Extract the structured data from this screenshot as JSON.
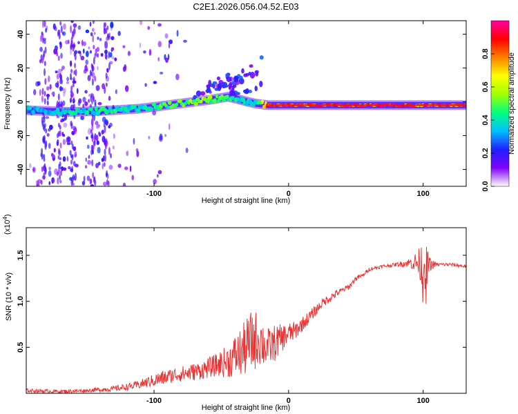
{
  "chart_data": [
    {
      "type": "heatmap",
      "title": "C2E1.2026.056.04.52.E03",
      "xlabel": "Height of straight line (km)",
      "ylabel": "Frequency (Hz)",
      "xlim": [
        -195,
        132
      ],
      "ylim": [
        -50,
        48
      ],
      "x_ticks": [
        {
          "value": -100,
          "label": "-100"
        },
        {
          "value": 0,
          "label": "0"
        },
        {
          "value": 100,
          "label": "100"
        }
      ],
      "y_ticks": [
        {
          "value": 40,
          "label": "40"
        },
        {
          "value": 20,
          "label": "20"
        },
        {
          "value": 0,
          "label": "0"
        },
        {
          "value": -20,
          "label": "-20"
        },
        {
          "value": -40,
          "label": "-40"
        }
      ],
      "ridge": {
        "name": "Dominant frequency track",
        "x": [
          -195,
          -160,
          -130,
          -110,
          -100,
          -80,
          -60,
          -45,
          -35,
          -25,
          -15,
          0,
          20,
          60,
          100,
          132
        ],
        "y": [
          -5,
          -6,
          -5,
          -4,
          -3,
          -1,
          1,
          3,
          1,
          -1,
          -2,
          -2,
          -2,
          -2,
          -2,
          -2
        ],
        "amplitude": [
          0.35,
          0.4,
          0.45,
          0.4,
          0.45,
          0.55,
          0.55,
          0.45,
          0.4,
          0.35,
          0.85,
          0.9,
          0.9,
          0.95,
          0.9,
          0.9
        ]
      },
      "colorbar": {
        "label": "Normalized spectral amplitude",
        "range": [
          0,
          1
        ],
        "ticks": [
          {
            "value": 0.0,
            "label": "0.0"
          },
          {
            "value": 0.2,
            "label": "0.2"
          },
          {
            "value": 0.4,
            "label": "0.4"
          },
          {
            "value": 0.6,
            "label": "0.6"
          },
          {
            "value": 0.8,
            "label": "0.8"
          }
        ],
        "colors": [
          "#ffffff",
          "#8000ff",
          "#2020ff",
          "#00c0ff",
          "#00ff80",
          "#a0ff00",
          "#ffff00",
          "#ff8000",
          "#ff0000",
          "#ff00a0"
        ]
      }
    },
    {
      "type": "line",
      "xlabel": "Height of straight line (km)",
      "ylabel": "SNR (10 * v/v)",
      "y_multiplier": "(x10",
      "y_multiplier_exp": "4",
      "y_multiplier_close": ")",
      "xlim": [
        -195,
        132
      ],
      "ylim": [
        0,
        1.8
      ],
      "x_ticks": [
        {
          "value": -100,
          "label": "-100"
        },
        {
          "value": 0,
          "label": "0"
        },
        {
          "value": 100,
          "label": "100"
        }
      ],
      "y_ticks": [
        {
          "value": 0.5,
          "label": "0.5"
        },
        {
          "value": 1.0,
          "label": "1.0"
        },
        {
          "value": 1.5,
          "label": "1.5"
        }
      ],
      "series": [
        {
          "name": "SNR",
          "color": "#ee3030",
          "x": [
            -195,
            -170,
            -150,
            -130,
            -115,
            -105,
            -95,
            -85,
            -75,
            -65,
            -55,
            -45,
            -35,
            -28,
            -22,
            -18,
            -14,
            -10,
            -5,
            0,
            5,
            10,
            15,
            20,
            25,
            30,
            35,
            40,
            45,
            50,
            55,
            60,
            70,
            80,
            90,
            95,
            98,
            100,
            102,
            105,
            110,
            120,
            132
          ],
          "y": [
            0.03,
            0.02,
            0.03,
            0.05,
            0.08,
            0.12,
            0.16,
            0.2,
            0.22,
            0.25,
            0.3,
            0.35,
            0.45,
            0.55,
            0.6,
            0.52,
            0.5,
            0.55,
            0.6,
            0.65,
            0.68,
            0.75,
            0.82,
            0.9,
            0.98,
            1.03,
            1.08,
            1.12,
            1.16,
            1.25,
            1.28,
            1.35,
            1.38,
            1.4,
            1.42,
            1.42,
            1.4,
            1.35,
            1.38,
            1.4,
            1.4,
            1.4,
            1.38
          ],
          "noise": [
            0.02,
            0.02,
            0.02,
            0.03,
            0.04,
            0.06,
            0.08,
            0.08,
            0.09,
            0.1,
            0.12,
            0.18,
            0.28,
            0.35,
            0.3,
            0.25,
            0.2,
            0.2,
            0.15,
            0.12,
            0.1,
            0.08,
            0.07,
            0.06,
            0.05,
            0.05,
            0.04,
            0.03,
            0.03,
            0.03,
            0.02,
            0.02,
            0.02,
            0.02,
            0.05,
            0.12,
            0.2,
            0.4,
            0.25,
            0.08,
            0.02,
            0.02,
            0.02
          ]
        }
      ]
    }
  ]
}
